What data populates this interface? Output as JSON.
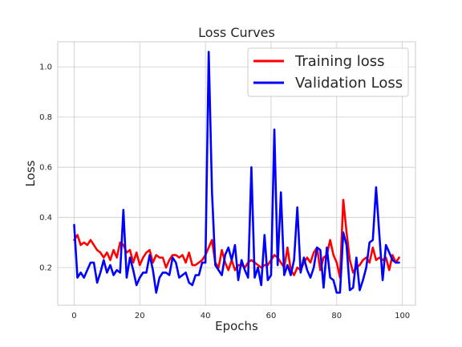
{
  "chart_data": {
    "type": "line",
    "title": "Loss Curves",
    "xlabel": "Epochs",
    "ylabel": "Loss",
    "xlim": [
      -5,
      104
    ],
    "ylim": [
      0.05,
      1.1
    ],
    "x_ticks": [
      0,
      20,
      40,
      60,
      80,
      100
    ],
    "y_ticks": [
      0.2,
      0.4,
      0.6,
      0.8,
      1.0
    ],
    "x_tick_labels": [
      "0",
      "20",
      "40",
      "60",
      "80",
      "100"
    ],
    "y_tick_labels": [
      "0.2",
      "0.4",
      "0.6",
      "0.8",
      "1.0"
    ],
    "grid": true,
    "legend_position": "top-right",
    "series": [
      {
        "name": "Training loss",
        "color": "#ff0000",
        "values": [
          0.31,
          0.33,
          0.29,
          0.3,
          0.29,
          0.31,
          0.29,
          0.27,
          0.26,
          0.24,
          0.26,
          0.23,
          0.27,
          0.24,
          0.3,
          0.29,
          0.26,
          0.27,
          0.22,
          0.26,
          0.21,
          0.24,
          0.26,
          0.27,
          0.22,
          0.25,
          0.24,
          0.24,
          0.2,
          0.23,
          0.25,
          0.25,
          0.24,
          0.25,
          0.22,
          0.26,
          0.21,
          0.21,
          0.22,
          0.23,
          0.25,
          0.28,
          0.31,
          0.22,
          0.2,
          0.27,
          0.22,
          0.19,
          0.23,
          0.19,
          0.21,
          0.21,
          0.2,
          0.22,
          0.23,
          0.22,
          0.21,
          0.2,
          0.21,
          0.21,
          0.23,
          0.25,
          0.24,
          0.22,
          0.2,
          0.28,
          0.19,
          0.17,
          0.2,
          0.19,
          0.22,
          0.24,
          0.22,
          0.26,
          0.28,
          0.19,
          0.24,
          0.25,
          0.31,
          0.25,
          0.22,
          0.16,
          0.47,
          0.34,
          0.23,
          0.18,
          0.2,
          0.21,
          0.23,
          0.24,
          0.22,
          0.28,
          0.23,
          0.24,
          0.23,
          0.24,
          0.19,
          0.25,
          0.22,
          0.24
        ]
      },
      {
        "name": "Validation Loss",
        "color": "#0000ff",
        "values": [
          0.37,
          0.16,
          0.18,
          0.16,
          0.19,
          0.22,
          0.22,
          0.14,
          0.18,
          0.23,
          0.18,
          0.21,
          0.17,
          0.19,
          0.18,
          0.43,
          0.16,
          0.24,
          0.19,
          0.13,
          0.16,
          0.18,
          0.18,
          0.25,
          0.19,
          0.1,
          0.16,
          0.18,
          0.18,
          0.17,
          0.24,
          0.22,
          0.16,
          0.17,
          0.18,
          0.14,
          0.13,
          0.17,
          0.17,
          0.22,
          0.22,
          1.06,
          0.5,
          0.21,
          0.19,
          0.17,
          0.25,
          0.28,
          0.23,
          0.29,
          0.15,
          0.23,
          0.19,
          0.16,
          0.6,
          0.16,
          0.2,
          0.13,
          0.33,
          0.15,
          0.17,
          0.75,
          0.21,
          0.5,
          0.17,
          0.21,
          0.17,
          0.23,
          0.44,
          0.18,
          0.24,
          0.19,
          0.16,
          0.2,
          0.28,
          0.27,
          0.12,
          0.28,
          0.16,
          0.15,
          0.1,
          0.1,
          0.34,
          0.29,
          0.11,
          0.12,
          0.24,
          0.11,
          0.15,
          0.2,
          0.3,
          0.31,
          0.52,
          0.33,
          0.15,
          0.29,
          0.26,
          0.23,
          0.22,
          0.22
        ]
      }
    ]
  }
}
